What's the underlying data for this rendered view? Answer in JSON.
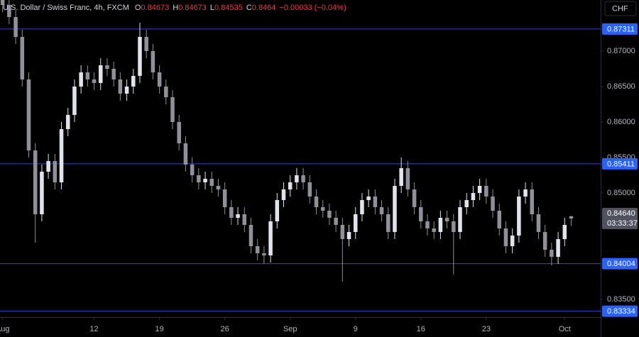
{
  "chart_data": {
    "type": "candlestick",
    "symbol": "U.S. Dollar / Swiss Franc, 4h, FXCM",
    "ohlc_letters": [
      "O",
      "H",
      "L",
      "C"
    ],
    "change": "−0.00033 (−0.04%)",
    "currency_button": "CHF",
    "up_color": "#e0e3eb",
    "down_color": "#8e919a",
    "level_color": "#2f47d6",
    "x": [
      0,
      0.5,
      1,
      1.5,
      2,
      2.5,
      3,
      3.5,
      4,
      4.5,
      5,
      5.5,
      6,
      6.5,
      7,
      7.5,
      8,
      8.5,
      9,
      9.5,
      10,
      10.5,
      11,
      11.5,
      12,
      12.5,
      13,
      13.5,
      14,
      14.5,
      15,
      15.5,
      16,
      16.5,
      17,
      17.5,
      18,
      18.5,
      19,
      19.5,
      20,
      20.5,
      21,
      21.5,
      22,
      22.5,
      23,
      23.5,
      24,
      24.5,
      25,
      25.5,
      26,
      26.5,
      27,
      27.5,
      28,
      28.5,
      29,
      29.5,
      30,
      30.5,
      31,
      31.5,
      32,
      32.5,
      33,
      33.5,
      34,
      34.5,
      35,
      35.5,
      36,
      36.5,
      37,
      37.5,
      38,
      38.5,
      39,
      39.5,
      40,
      40.5,
      41,
      41.5,
      42,
      42.5,
      43,
      43.5
    ],
    "open": [
      0.8772,
      0.8765,
      0.8748,
      0.872,
      0.866,
      0.856,
      0.847,
      0.853,
      0.8545,
      0.8515,
      0.859,
      0.861,
      0.865,
      0.867,
      0.866,
      0.8655,
      0.868,
      0.8675,
      0.866,
      0.864,
      0.865,
      0.8665,
      0.872,
      0.87,
      0.867,
      0.865,
      0.8635,
      0.86,
      0.857,
      0.854,
      0.8525,
      0.8515,
      0.852,
      0.851,
      0.8505,
      0.848,
      0.8465,
      0.847,
      0.8455,
      0.8425,
      0.8415,
      0.8412,
      0.846,
      0.849,
      0.8505,
      0.8515,
      0.8525,
      0.8515,
      0.8495,
      0.848,
      0.8475,
      0.8465,
      0.8455,
      0.8435,
      0.8445,
      0.847,
      0.849,
      0.8495,
      0.848,
      0.847,
      0.8445,
      0.851,
      0.8535,
      0.8505,
      0.848,
      0.846,
      0.845,
      0.8445,
      0.8465,
      0.846,
      0.8445,
      0.848,
      0.849,
      0.85,
      0.851,
      0.8495,
      0.8475,
      0.845,
      0.8425,
      0.844,
      0.8495,
      0.8505,
      0.847,
      0.8445,
      0.842,
      0.841,
      0.8435,
      0.84673
    ],
    "high": [
      0.8782,
      0.8775,
      0.8758,
      0.873,
      0.867,
      0.857,
      0.854,
      0.8555,
      0.8555,
      0.86,
      0.862,
      0.866,
      0.868,
      0.868,
      0.867,
      0.869,
      0.869,
      0.8685,
      0.867,
      0.866,
      0.8675,
      0.874,
      0.873,
      0.871,
      0.868,
      0.866,
      0.8645,
      0.861,
      0.858,
      0.855,
      0.8535,
      0.853,
      0.853,
      0.852,
      0.8515,
      0.849,
      0.848,
      0.848,
      0.8465,
      0.8435,
      0.8425,
      0.847,
      0.85,
      0.8515,
      0.8525,
      0.8535,
      0.8535,
      0.8525,
      0.8505,
      0.849,
      0.8485,
      0.8475,
      0.8465,
      0.8455,
      0.848,
      0.85,
      0.8505,
      0.8505,
      0.849,
      0.848,
      0.852,
      0.855,
      0.8545,
      0.8515,
      0.849,
      0.847,
      0.846,
      0.8475,
      0.8475,
      0.847,
      0.849,
      0.85,
      0.851,
      0.852,
      0.852,
      0.8505,
      0.8485,
      0.846,
      0.845,
      0.8505,
      0.8515,
      0.8515,
      0.848,
      0.8455,
      0.843,
      0.8445,
      0.8465,
      0.84673
    ],
    "low": [
      0.8755,
      0.8738,
      0.871,
      0.865,
      0.855,
      0.843,
      0.846,
      0.852,
      0.8505,
      0.8505,
      0.858,
      0.86,
      0.864,
      0.865,
      0.8645,
      0.8645,
      0.8665,
      0.865,
      0.863,
      0.863,
      0.864,
      0.8655,
      0.869,
      0.866,
      0.864,
      0.8625,
      0.859,
      0.856,
      0.853,
      0.8515,
      0.8505,
      0.8505,
      0.85,
      0.8495,
      0.847,
      0.8455,
      0.8455,
      0.8445,
      0.8415,
      0.8405,
      0.84,
      0.8402,
      0.845,
      0.848,
      0.8495,
      0.8505,
      0.8505,
      0.8485,
      0.847,
      0.8465,
      0.8455,
      0.8445,
      0.8375,
      0.8425,
      0.8435,
      0.846,
      0.848,
      0.847,
      0.846,
      0.8435,
      0.8435,
      0.85,
      0.8495,
      0.847,
      0.845,
      0.844,
      0.8435,
      0.8435,
      0.845,
      0.8385,
      0.8435,
      0.847,
      0.848,
      0.849,
      0.8485,
      0.8465,
      0.844,
      0.8415,
      0.8415,
      0.843,
      0.8485,
      0.846,
      0.8435,
      0.841,
      0.8398,
      0.84,
      0.8425,
      0.84535
    ],
    "close": [
      0.8765,
      0.8748,
      0.872,
      0.866,
      0.856,
      0.847,
      0.853,
      0.8545,
      0.8515,
      0.859,
      0.861,
      0.865,
      0.867,
      0.866,
      0.8655,
      0.868,
      0.8675,
      0.866,
      0.864,
      0.865,
      0.8665,
      0.872,
      0.87,
      0.867,
      0.865,
      0.8635,
      0.86,
      0.857,
      0.854,
      0.8525,
      0.8515,
      0.852,
      0.851,
      0.8505,
      0.848,
      0.8465,
      0.847,
      0.8455,
      0.8425,
      0.8415,
      0.8412,
      0.846,
      0.849,
      0.8505,
      0.8515,
      0.8525,
      0.8515,
      0.8495,
      0.848,
      0.8475,
      0.8465,
      0.8455,
      0.8435,
      0.8445,
      0.847,
      0.849,
      0.8495,
      0.848,
      0.847,
      0.8445,
      0.851,
      0.8535,
      0.8505,
      0.848,
      0.846,
      0.845,
      0.8445,
      0.8465,
      0.846,
      0.8445,
      0.848,
      0.849,
      0.85,
      0.851,
      0.8495,
      0.8475,
      0.845,
      0.8425,
      0.844,
      0.8495,
      0.8505,
      0.847,
      0.8445,
      0.842,
      0.841,
      0.8435,
      0.8455,
      0.8464
    ],
    "levels": [
      0.87311,
      0.85411,
      0.84004,
      0.83334
    ],
    "current_price": {
      "value": 0.8464,
      "label": "0.84640"
    },
    "countdown": "03:33:37",
    "xlim": [
      -0.2,
      45.7
    ],
    "ylim": [
      0.8325,
      0.8772
    ],
    "xticks": [
      {
        "value": 0,
        "label": "Aug"
      },
      {
        "value": 7,
        "label": "12"
      },
      {
        "value": 12,
        "label": "19"
      },
      {
        "value": 17,
        "label": "26"
      },
      {
        "value": 22,
        "label": "Sep"
      },
      {
        "value": 27,
        "label": "9"
      },
      {
        "value": 32,
        "label": "16"
      },
      {
        "value": 37,
        "label": "23"
      },
      {
        "value": 43,
        "label": "Oct"
      }
    ],
    "yticks": [
      {
        "value": 0.87,
        "label": "0.87000"
      },
      {
        "value": 0.865,
        "label": "0.86500"
      },
      {
        "value": 0.86,
        "label": "0.86000"
      },
      {
        "value": 0.855,
        "label": "0.85500"
      },
      {
        "value": 0.85,
        "label": "0.85000"
      },
      {
        "value": 0.835,
        "label": "0.83500"
      }
    ]
  }
}
